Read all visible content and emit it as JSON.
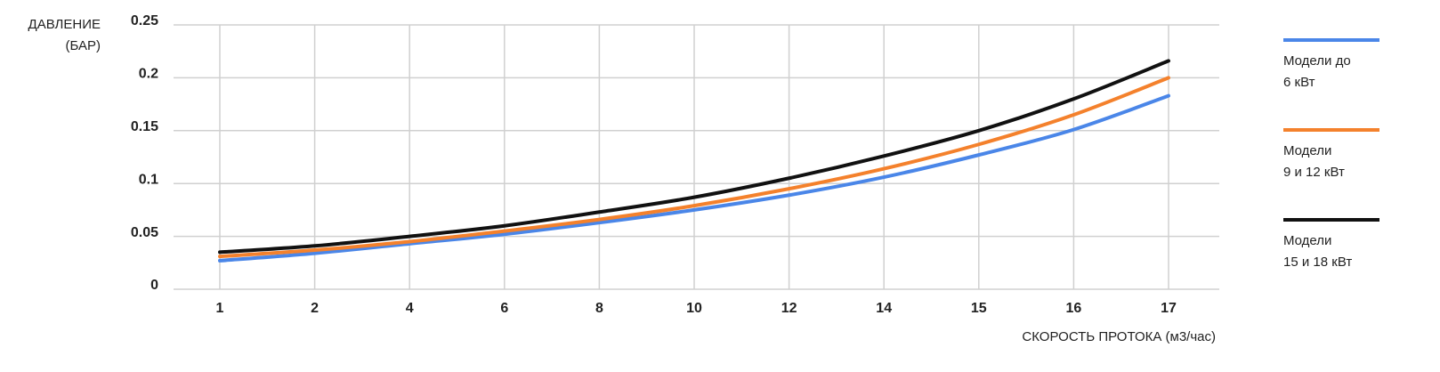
{
  "chart_data": {
    "type": "line",
    "y_label": "ДАВЛЕНИЕ\n(БАР)",
    "x_label": "СКОРОСТЬ ПРОТОКА (м3/час)",
    "categories": [
      "1",
      "2",
      "4",
      "6",
      "8",
      "10",
      "12",
      "14",
      "15",
      "16",
      "17"
    ],
    "series": [
      {
        "name": "Модели до\n6 кВт",
        "color": "#4a86e8",
        "values": [
          0.027,
          0.034,
          0.043,
          0.052,
          0.063,
          0.075,
          0.089,
          0.106,
          0.127,
          0.151,
          0.183
        ]
      },
      {
        "name": "Модели\n9 и 12 кВт",
        "color": "#f4812c",
        "values": [
          0.031,
          0.037,
          0.045,
          0.055,
          0.066,
          0.079,
          0.095,
          0.114,
          0.137,
          0.165,
          0.2
        ]
      },
      {
        "name": "Модели\n15 и 18 кВт",
        "color": "#111111",
        "values": [
          0.035,
          0.041,
          0.05,
          0.06,
          0.073,
          0.087,
          0.105,
          0.126,
          0.15,
          0.18,
          0.216
        ]
      }
    ],
    "ylim": [
      0,
      0.25
    ],
    "yticks": [
      0,
      0.05,
      0.1,
      0.15,
      0.2,
      0.25
    ],
    "grid": true
  }
}
